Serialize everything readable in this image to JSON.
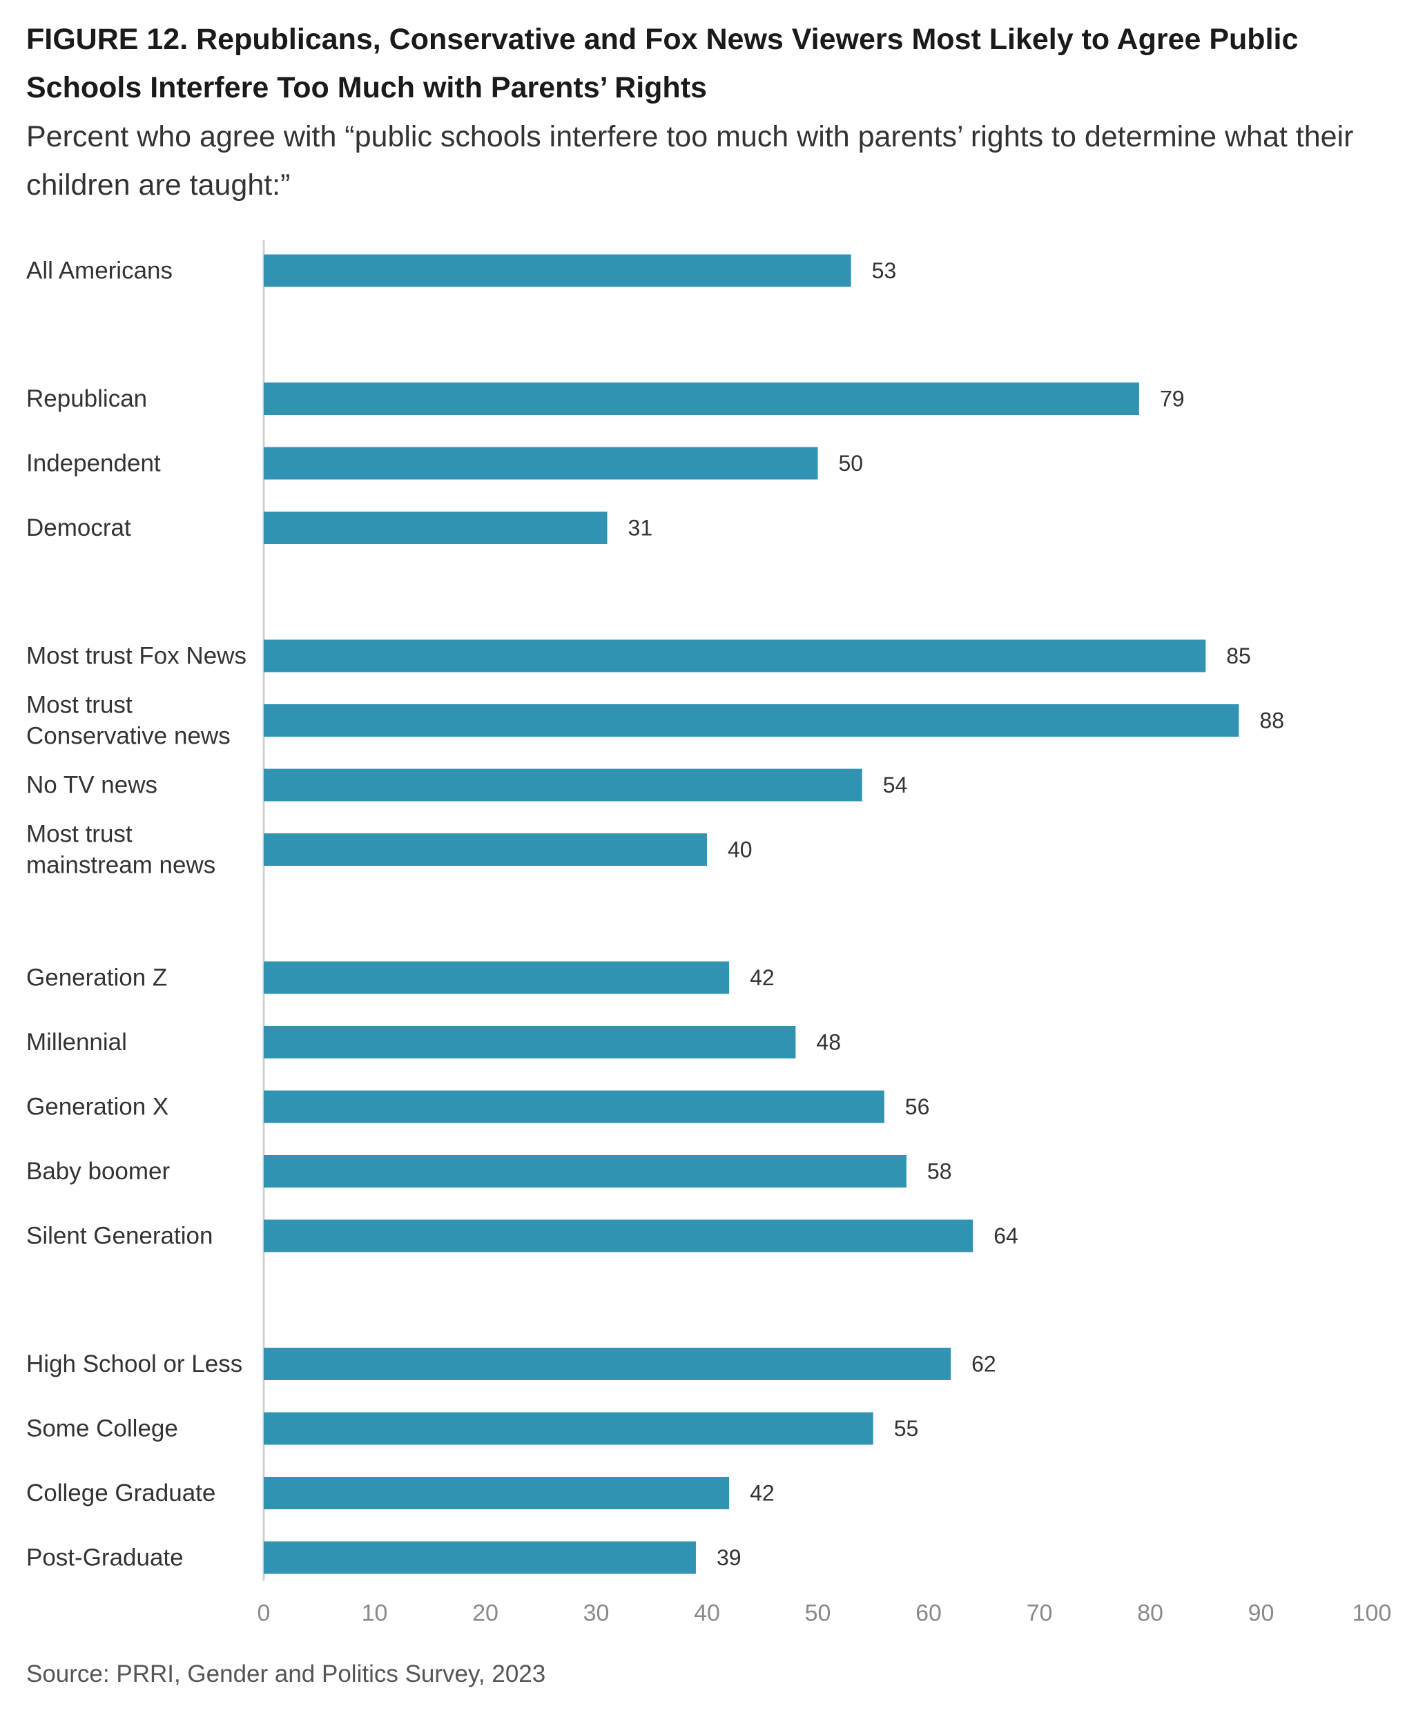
{
  "title": "FIGURE 12.  Republicans, Conservative and Fox News Viewers Most Likely to Agree Public Schools Interfere Too Much with Parents’ Rights",
  "subtitle": "Percent who agree with “public schools interfere too much with parents’ rights to determine what their children are taught:”",
  "source": "Source: PRRI, Gender and Politics Survey, 2023",
  "chart_data": {
    "type": "bar",
    "orientation": "horizontal",
    "xlim": [
      0,
      100
    ],
    "xticks": [
      0,
      10,
      20,
      30,
      40,
      50,
      60,
      70,
      80,
      90,
      100
    ],
    "grid": false,
    "bar_color": "#3193b2",
    "categories": [
      [
        "All Americans"
      ],
      [
        "Republican"
      ],
      [
        "Independent"
      ],
      [
        "Democrat"
      ],
      [
        "Most trust Fox News"
      ],
      [
        "Most trust",
        "Conservative news"
      ],
      [
        "No TV news"
      ],
      [
        "Most trust",
        "mainstream news"
      ],
      [
        "Generation Z"
      ],
      [
        "Millennial"
      ],
      [
        "Generation X"
      ],
      [
        "Baby boomer"
      ],
      [
        "Silent Generation"
      ],
      [
        "High School or Less"
      ],
      [
        "Some College"
      ],
      [
        "College Graduate"
      ],
      [
        "Post-Graduate"
      ]
    ],
    "groups": [
      0,
      1,
      1,
      1,
      2,
      2,
      2,
      2,
      3,
      3,
      3,
      3,
      3,
      4,
      4,
      4,
      4
    ],
    "values": [
      53,
      79,
      50,
      31,
      85,
      88,
      54,
      40,
      42,
      48,
      56,
      58,
      64,
      62,
      55,
      42,
      39
    ]
  }
}
